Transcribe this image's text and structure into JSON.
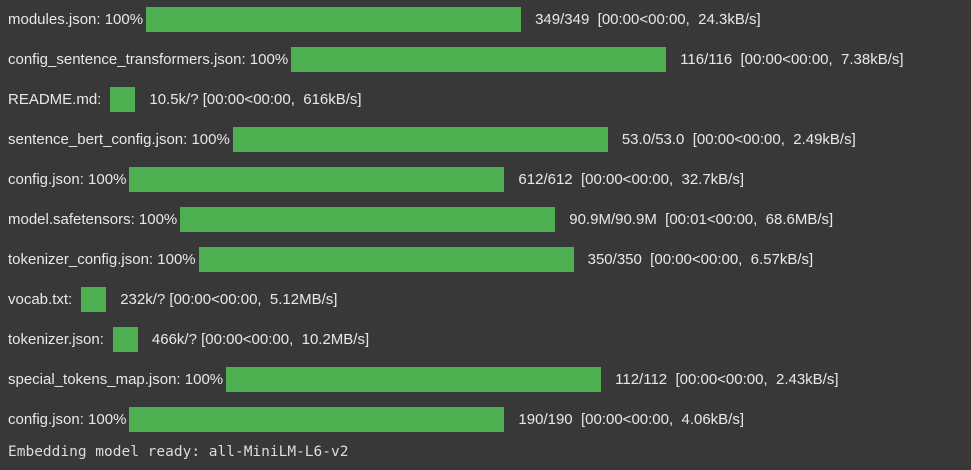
{
  "downloads": [
    {
      "label": "modules.json: 100%",
      "progress": 1.0,
      "stats": "349/349  [00:00<00:00,  24.3kB/s]"
    },
    {
      "label": "config_sentence_transformers.json: 100%",
      "progress": 1.0,
      "stats": "116/116  [00:00<00:00,  7.38kB/s]"
    },
    {
      "label": "README.md:",
      "progress": 1.0,
      "stats": "10.5k/? [00:00<00:00,  616kB/s]"
    },
    {
      "label": "sentence_bert_config.json: 100%",
      "progress": 1.0,
      "stats": "53.0/53.0  [00:00<00:00,  2.49kB/s]"
    },
    {
      "label": "config.json: 100%",
      "progress": 1.0,
      "stats": "612/612  [00:00<00:00,  32.7kB/s]"
    },
    {
      "label": "model.safetensors: 100%",
      "progress": 1.0,
      "stats": "90.9M/90.9M  [00:01<00:00,  68.6MB/s]"
    },
    {
      "label": "tokenizer_config.json: 100%",
      "progress": 1.0,
      "stats": "350/350  [00:00<00:00,  6.57kB/s]"
    },
    {
      "label": "vocab.txt:",
      "progress": 1.0,
      "stats": "232k/? [00:00<00:00,  5.12MB/s]"
    },
    {
      "label": "tokenizer.json:",
      "progress": 1.0,
      "stats": "466k/? [00:00<00:00,  10.2MB/s]"
    },
    {
      "label": "special_tokens_map.json: 100%",
      "progress": 1.0,
      "stats": "112/112  [00:00<00:00,  2.43kB/s]"
    },
    {
      "label": "config.json: 100%",
      "progress": 1.0,
      "stats": "190/190  [00:00<00:00,  4.06kB/s]"
    }
  ],
  "final_message": "Embedding model ready: all-MiniLM-L6-v2",
  "colors": {
    "background": "#383838",
    "progress_bar": "#4caf50",
    "text": "#e8e8e8"
  }
}
